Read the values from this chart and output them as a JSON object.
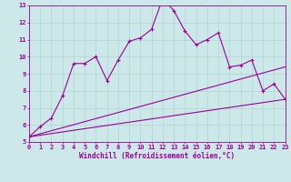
{
  "xlabel": "Windchill (Refroidissement éolien,°C)",
  "xlim": [
    0,
    23
  ],
  "ylim": [
    5,
    13
  ],
  "yticks": [
    5,
    6,
    7,
    8,
    9,
    10,
    11,
    12,
    13
  ],
  "xticks": [
    0,
    1,
    2,
    3,
    4,
    5,
    6,
    7,
    8,
    9,
    10,
    11,
    12,
    13,
    14,
    15,
    16,
    17,
    18,
    19,
    20,
    21,
    22,
    23
  ],
  "bg_color": "#cde8e8",
  "line_color": "#990099",
  "grid_color": "#b0d4d4",
  "line1_x": [
    0,
    1,
    2,
    3,
    4,
    5,
    6,
    7,
    8,
    9,
    10,
    11,
    12,
    13,
    14,
    15,
    16,
    17,
    18,
    19,
    20,
    21,
    22,
    23
  ],
  "line1_y": [
    5.3,
    5.9,
    6.4,
    7.7,
    9.6,
    9.6,
    10.0,
    8.6,
    9.8,
    10.9,
    11.1,
    11.6,
    13.4,
    12.7,
    11.5,
    10.7,
    11.0,
    11.4,
    9.4,
    9.5,
    9.8,
    8.0,
    8.4,
    7.5
  ],
  "line2_x": [
    0,
    23
  ],
  "line2_y": [
    5.3,
    9.4
  ],
  "line3_x": [
    0,
    23
  ],
  "line3_y": [
    5.3,
    7.5
  ]
}
